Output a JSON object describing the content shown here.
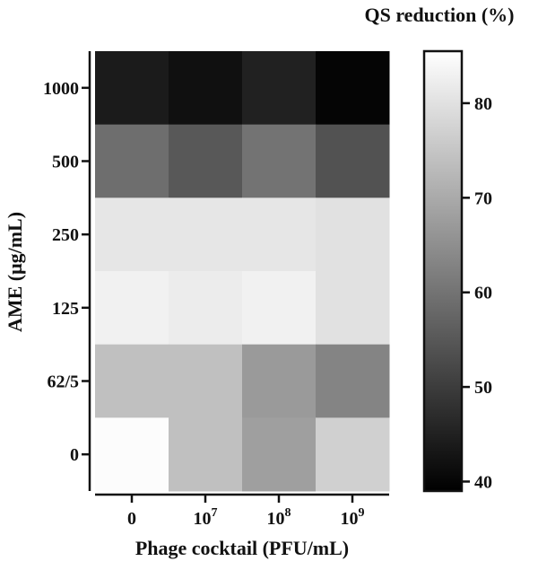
{
  "chart_data": {
    "type": "heatmap",
    "title": "",
    "xlabel": "Phage cocktail (PFU/mL)",
    "ylabel": "AME (μg/mL)",
    "x_categories": [
      "0",
      "10^7",
      "10^8",
      "10^9"
    ],
    "x_tick_labels": [
      {
        "base": "0",
        "exp": ""
      },
      {
        "base": "10",
        "exp": "7"
      },
      {
        "base": "10",
        "exp": "8"
      },
      {
        "base": "10",
        "exp": "9"
      }
    ],
    "y_categories": [
      "1000",
      "500",
      "250",
      "125",
      "62/5",
      "0"
    ],
    "values": [
      [
        44,
        42,
        45,
        40
      ],
      [
        59,
        55,
        60,
        54
      ],
      [
        81,
        81,
        81,
        80
      ],
      [
        83,
        82,
        83,
        80
      ],
      [
        74,
        74,
        67,
        63
      ],
      [
        85,
        74,
        68,
        77
      ]
    ],
    "colorbar": {
      "title": "QS reduction (%)",
      "range": [
        39,
        85.5
      ],
      "ticks": [
        40,
        50,
        60,
        70,
        80
      ],
      "colormap": "grayscale",
      "low_color": "#000000",
      "high_color": "#ffffff"
    },
    "grid": false
  }
}
